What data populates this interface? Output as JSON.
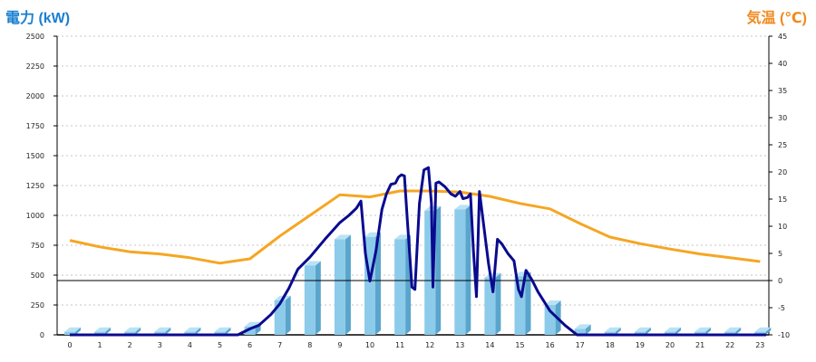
{
  "colors": {
    "left_unit": "#1a7fd1",
    "right_unit": "#f08a1e",
    "bar_front": "#8ccbea",
    "bar_side": "#5aa5cc",
    "bar_top": "#b9e2f5",
    "power_line": "#0a0a8f",
    "temp_line": "#f5a623",
    "grid": "#c4c4c4",
    "axis": "#000000"
  },
  "chart_data": {
    "type": "bar+line",
    "title": "",
    "left_axis": {
      "label": "電力 (kW)",
      "min": 0,
      "max": 2500,
      "ticks": [
        0,
        250,
        500,
        750,
        1000,
        1250,
        1500,
        1750,
        2000,
        2250,
        2500
      ]
    },
    "right_axis": {
      "label": "気温 (℃)",
      "min": -10,
      "max": 45,
      "ticks": [
        -10,
        -5,
        0,
        5,
        10,
        15,
        20,
        25,
        30,
        35,
        40,
        45
      ]
    },
    "categories": [
      "0",
      "1",
      "2",
      "3",
      "4",
      "5",
      "6",
      "7",
      "8",
      "9",
      "10",
      "11",
      "12",
      "13",
      "14",
      "15",
      "16",
      "17",
      "18",
      "19",
      "20",
      "21",
      "22",
      "23"
    ],
    "bars": {
      "values": [
        25,
        25,
        25,
        25,
        25,
        25,
        70,
        290,
        580,
        800,
        820,
        800,
        1040,
        1050,
        480,
        490,
        250,
        50,
        25,
        25,
        25,
        25,
        25,
        25
      ]
    },
    "power_series": {
      "x": [
        0,
        5.6,
        6.0,
        6.3,
        6.7,
        7.0,
        7.3,
        7.6,
        8.0,
        8.5,
        9.0,
        9.3,
        9.55,
        9.7,
        9.85,
        10.0,
        10.2,
        10.4,
        10.55,
        10.7,
        10.85,
        10.95,
        11.05,
        11.15,
        11.25,
        11.4,
        11.5,
        11.65,
        11.8,
        11.95,
        12.05,
        12.1,
        12.2,
        12.3,
        12.5,
        12.7,
        12.85,
        13.0,
        13.1,
        13.25,
        13.35,
        13.45,
        13.55,
        13.65,
        13.8,
        13.95,
        14.1,
        14.25,
        14.4,
        14.6,
        14.8,
        14.95,
        15.05,
        15.2,
        15.4,
        15.6,
        16.0,
        16.5,
        16.9,
        17.2,
        23.2
      ],
      "y": [
        0,
        0,
        50,
        80,
        170,
        260,
        390,
        550,
        650,
        800,
        940,
        1000,
        1060,
        1120,
        680,
        450,
        700,
        1050,
        1180,
        1260,
        1270,
        1320,
        1340,
        1330,
        950,
        400,
        380,
        1100,
        1380,
        1400,
        1100,
        400,
        1270,
        1280,
        1240,
        1180,
        1160,
        1200,
        1140,
        1150,
        1180,
        700,
        320,
        1200,
        900,
        600,
        360,
        800,
        760,
        680,
        620,
        380,
        320,
        540,
        460,
        360,
        200,
        80,
        0,
        0,
        0
      ]
    },
    "temp_series": {
      "x": [
        0,
        1,
        2,
        3,
        4,
        5,
        6,
        7,
        8,
        9,
        10,
        11,
        12,
        13,
        14,
        15,
        16,
        17,
        18,
        19,
        20,
        21,
        22,
        23
      ],
      "y": [
        7.4,
        6.2,
        5.3,
        4.9,
        4.2,
        3.2,
        4.0,
        8.2,
        12.0,
        15.8,
        15.4,
        16.5,
        16.5,
        16.3,
        15.5,
        14.2,
        13.2,
        10.5,
        8.0,
        6.8,
        5.8,
        4.9,
        4.2,
        3.5
      ]
    },
    "zero_temp_reference": 0,
    "grid": true
  }
}
